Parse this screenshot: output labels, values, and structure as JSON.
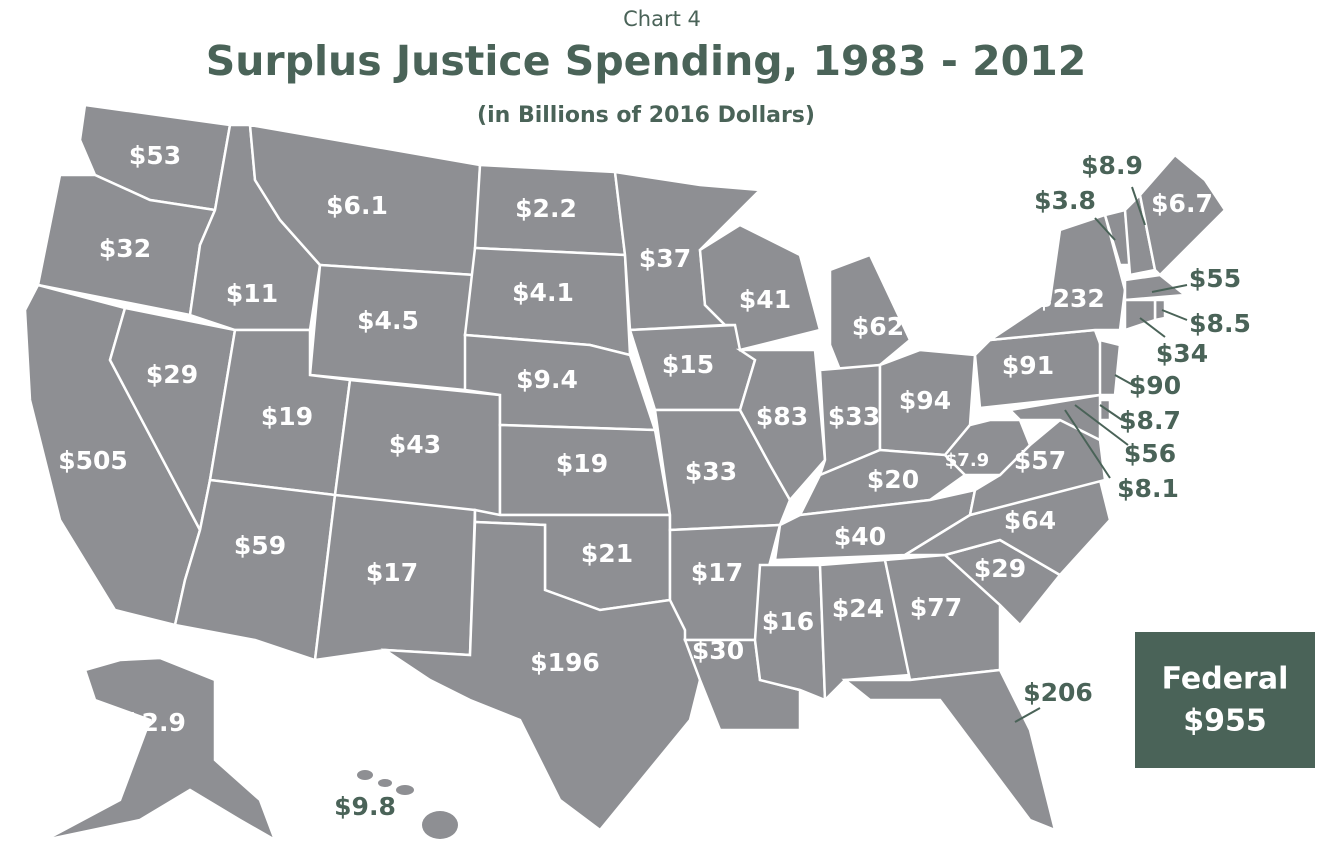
{
  "kicker": "Chart 4",
  "title": "Surplus Justice Spending, 1983 - 2012",
  "subtitle": "(in Billions of 2016 Dollars)",
  "regions": [
    {
      "label": "$53"
    },
    {
      "label": "$32"
    },
    {
      "label": "$505"
    },
    {
      "label": "$29"
    },
    {
      "label": "$11"
    },
    {
      "label": "$6.1"
    },
    {
      "label": "$4.5"
    },
    {
      "label": "$19"
    },
    {
      "label": "$43"
    },
    {
      "label": "$59"
    },
    {
      "label": "$17"
    },
    {
      "label": "$2.2"
    },
    {
      "label": "$4.1"
    },
    {
      "label": "$9.4"
    },
    {
      "label": "$19"
    },
    {
      "label": "$21"
    },
    {
      "label": "$196"
    },
    {
      "label": "$37"
    },
    {
      "label": "$15"
    },
    {
      "label": "$33"
    },
    {
      "label": "$17"
    },
    {
      "label": "$30"
    },
    {
      "label": "$41"
    },
    {
      "label": "$83"
    },
    {
      "label": "$62"
    },
    {
      "label": "$33"
    },
    {
      "label": "$94"
    },
    {
      "label": "$20"
    },
    {
      "label": "$40"
    },
    {
      "label": "$16"
    },
    {
      "label": "$24"
    },
    {
      "label": "$77"
    },
    {
      "label": "$206"
    },
    {
      "label": "$29"
    },
    {
      "label": "$64"
    },
    {
      "label": "$57"
    },
    {
      "label": "$7.9"
    },
    {
      "label": "$91"
    },
    {
      "label": "$232"
    },
    {
      "label": "$3.8"
    },
    {
      "label": "$8.9"
    },
    {
      "label": "$6.7"
    },
    {
      "label": "$55"
    },
    {
      "label": "$8.5"
    },
    {
      "label": "$34"
    },
    {
      "label": "$90"
    },
    {
      "label": "$8.7"
    },
    {
      "label": "$56"
    },
    {
      "label": "$8.1"
    },
    {
      "label": "$2.9"
    },
    {
      "label": "$9.8"
    }
  ],
  "federal": {
    "label": "Federal",
    "value": "$955"
  }
}
